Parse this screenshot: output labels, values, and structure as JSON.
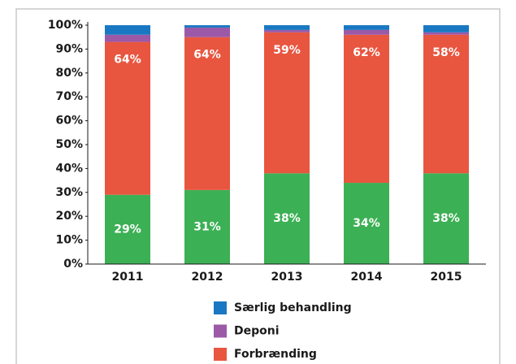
{
  "chart_data": {
    "type": "stacked_bar",
    "categories": [
      "2011",
      "2012",
      "2013",
      "2014",
      "2015"
    ],
    "series": [
      {
        "color": "#3cb054",
        "values": [
          29,
          31,
          38,
          34,
          38
        ],
        "value_labels": [
          "29%",
          "31%",
          "38%",
          "34%",
          "38%"
        ]
      },
      {
        "name": "Forbrænding",
        "color": "#e85640",
        "values": [
          64,
          64,
          59,
          62,
          58
        ],
        "value_labels": [
          "64%",
          "64%",
          "59%",
          "62%",
          "58%"
        ]
      },
      {
        "name": "Deponi",
        "color": "#9b59a8",
        "values": [
          3,
          4,
          1,
          2,
          1
        ]
      },
      {
        "name": "Særlig behandling",
        "color": "#1a78c2",
        "values": [
          4,
          1,
          2,
          2,
          3
        ]
      }
    ],
    "ylim": [
      0,
      100
    ],
    "yticks": [
      {
        "value": 0,
        "label": "0%"
      },
      {
        "value": 10,
        "label": "10%"
      },
      {
        "value": 20,
        "label": "20%"
      },
      {
        "value": 30,
        "label": "30%"
      },
      {
        "value": 40,
        "label": "40%"
      },
      {
        "value": 50,
        "label": "50%"
      },
      {
        "value": 60,
        "label": "60%"
      },
      {
        "value": 70,
        "label": "70%"
      },
      {
        "value": 80,
        "label": "80%"
      },
      {
        "value": 90,
        "label": "90%"
      },
      {
        "value": 100,
        "label": "100%"
      }
    ]
  }
}
